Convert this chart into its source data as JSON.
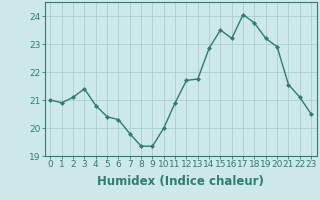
{
  "x": [
    0,
    1,
    2,
    3,
    4,
    5,
    6,
    7,
    8,
    9,
    10,
    11,
    12,
    13,
    14,
    15,
    16,
    17,
    18,
    19,
    20,
    21,
    22,
    23
  ],
  "y": [
    21.0,
    20.9,
    21.1,
    21.4,
    20.8,
    20.4,
    20.3,
    19.8,
    19.35,
    19.35,
    20.0,
    20.9,
    21.7,
    21.75,
    22.85,
    23.5,
    23.2,
    24.05,
    23.75,
    23.2,
    22.9,
    21.55,
    21.1,
    20.5
  ],
  "line_color": "#2e7d6e",
  "marker": "D",
  "marker_size": 2.0,
  "bg_color": "#cce8e8",
  "grid_color": "#aacfcf",
  "xlabel": "Humidex (Indice chaleur)",
  "ylabel": "",
  "ylim": [
    19.0,
    24.5
  ],
  "xlim": [
    -0.5,
    23.5
  ],
  "yticks": [
    19,
    20,
    21,
    22,
    23,
    24
  ],
  "xticks": [
    0,
    1,
    2,
    3,
    4,
    5,
    6,
    7,
    8,
    9,
    10,
    11,
    12,
    13,
    14,
    15,
    16,
    17,
    18,
    19,
    20,
    21,
    22,
    23
  ],
  "xtick_labels": [
    "0",
    "1",
    "2",
    "3",
    "4",
    "5",
    "6",
    "7",
    "8",
    "9",
    "10",
    "11",
    "12",
    "13",
    "14",
    "15",
    "16",
    "17",
    "18",
    "19",
    "20",
    "21",
    "22",
    "23"
  ],
  "tick_fontsize": 6.5,
  "xlabel_fontsize": 8.5,
  "axis_color": "#2e7d6e",
  "tick_color": "#2e7d6e",
  "line_width": 1.0,
  "spine_color": "#2e7d6e"
}
